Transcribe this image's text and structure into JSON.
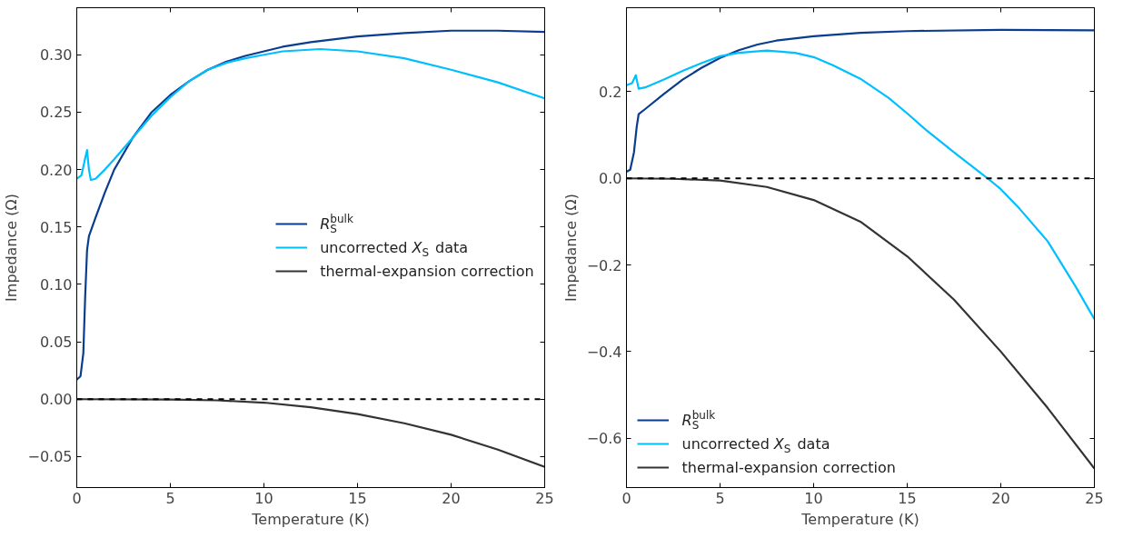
{
  "chart_data": [
    {
      "type": "line",
      "xlabel": "Temperature (K)",
      "ylabel": "Impedance (Ω)",
      "xlim": [
        0,
        25
      ],
      "ylim": [
        -0.077,
        0.341
      ],
      "xticks": [
        0,
        5,
        10,
        15,
        20,
        25
      ],
      "yticks": [
        {
          "value": -0.05,
          "label": "−0.05"
        },
        {
          "value": 0,
          "label": "0.00"
        },
        {
          "value": 0.05,
          "label": "0.05"
        },
        {
          "value": 0.1,
          "label": "0.10"
        },
        {
          "value": 0.15,
          "label": "0.15"
        },
        {
          "value": 0.2,
          "label": "0.20"
        },
        {
          "value": 0.25,
          "label": "0.25"
        },
        {
          "value": 0.3,
          "label": "0.30"
        }
      ],
      "grid": false,
      "legend": "right",
      "line_style": "solid",
      "ref_lines": [
        {
          "axis": "y",
          "value": 0,
          "color": "#000000",
          "line_style": "dashed"
        }
      ],
      "series": [
        {
          "name": "R$_{S}$$^{bulk}$",
          "color": "#0a3d8f",
          "x": [
            0,
            0.2,
            0.35,
            0.45,
            0.55,
            0.65,
            1,
            1.5,
            2,
            3,
            4,
            5,
            6,
            7,
            8,
            9,
            10,
            11,
            12.5,
            15,
            17.5,
            20,
            22.5,
            25
          ],
          "values": [
            0.017,
            0.02,
            0.04,
            0.09,
            0.13,
            0.142,
            0.158,
            0.18,
            0.2,
            0.228,
            0.25,
            0.265,
            0.277,
            0.287,
            0.294,
            0.299,
            0.303,
            0.307,
            0.311,
            0.316,
            0.319,
            0.321,
            0.321,
            0.32
          ]
        },
        {
          "name": "uncorrected X$_{S}$ data",
          "color": "#00bfff",
          "x": [
            0,
            0.25,
            0.45,
            0.55,
            0.65,
            0.75,
            1,
            1.5,
            2,
            3,
            4,
            5,
            6,
            7,
            8,
            9,
            10,
            11,
            12,
            13,
            14,
            15,
            17.5,
            20,
            22.5,
            25
          ],
          "values": [
            0.192,
            0.195,
            0.21,
            0.217,
            0.2,
            0.191,
            0.192,
            0.2,
            0.209,
            0.228,
            0.247,
            0.263,
            0.277,
            0.287,
            0.293,
            0.297,
            0.3,
            0.303,
            0.304,
            0.305,
            0.304,
            0.303,
            0.297,
            0.287,
            0.276,
            0.262
          ]
        },
        {
          "name": "thermal-expansion correction",
          "color": "#333333",
          "x": [
            0,
            5,
            7.5,
            10,
            12.5,
            15,
            17.5,
            20,
            22.5,
            25
          ],
          "values": [
            0,
            -0.0003,
            -0.001,
            -0.003,
            -0.007,
            -0.013,
            -0.021,
            -0.031,
            -0.044,
            -0.059
          ]
        }
      ]
    },
    {
      "type": "line",
      "xlabel": "Temperature (K)",
      "ylabel": "Impedance (Ω)",
      "xlim": [
        0,
        25
      ],
      "ylim": [
        -0.714,
        0.394
      ],
      "xticks": [
        0,
        5,
        10,
        15,
        20,
        25
      ],
      "yticks": [
        {
          "value": -0.6,
          "label": "−0.6"
        },
        {
          "value": -0.4,
          "label": "−0.4"
        },
        {
          "value": -0.2,
          "label": "−0.2"
        },
        {
          "value": 0,
          "label": "0.0"
        },
        {
          "value": 0.2,
          "label": "0.2"
        }
      ],
      "grid": false,
      "legend": "bottom left",
      "line_style": "solid",
      "ref_lines": [
        {
          "axis": "y",
          "value": 0,
          "color": "#000000",
          "line_style": "dashed"
        }
      ],
      "series": [
        {
          "name": "R$_{S}$$^{bulk}$",
          "color": "#0a3d8f",
          "x": [
            0,
            0.2,
            0.4,
            0.55,
            0.65,
            1,
            2,
            3,
            4,
            5,
            6,
            7,
            8,
            10,
            12.5,
            15,
            20,
            25
          ],
          "values": [
            0.015,
            0.02,
            0.06,
            0.12,
            0.148,
            0.16,
            0.195,
            0.228,
            0.255,
            0.278,
            0.296,
            0.309,
            0.318,
            0.328,
            0.336,
            0.34,
            0.343,
            0.342
          ]
        },
        {
          "name": "uncorrected X$_{S}$ data",
          "color": "#00bfff",
          "x": [
            0,
            0.3,
            0.5,
            0.65,
            1,
            2,
            3,
            4,
            5,
            6,
            7.5,
            9,
            10,
            11,
            12.5,
            14,
            15,
            16,
            17.5,
            19.3,
            20,
            21,
            22.5,
            24,
            25
          ],
          "values": [
            0.215,
            0.22,
            0.238,
            0.207,
            0.21,
            0.228,
            0.248,
            0.266,
            0.282,
            0.29,
            0.295,
            0.29,
            0.28,
            0.262,
            0.23,
            0.186,
            0.15,
            0.112,
            0.06,
            0.0,
            -0.025,
            -0.07,
            -0.145,
            -0.25,
            -0.325
          ]
        },
        {
          "name": "thermal-expansion correction",
          "color": "#333333",
          "x": [
            0,
            2.5,
            5,
            7.5,
            10,
            12.5,
            15,
            17.5,
            20,
            22.5,
            25
          ],
          "values": [
            0,
            -0.001,
            -0.005,
            -0.02,
            -0.05,
            -0.1,
            -0.18,
            -0.28,
            -0.4,
            -0.53,
            -0.67
          ]
        }
      ]
    }
  ]
}
